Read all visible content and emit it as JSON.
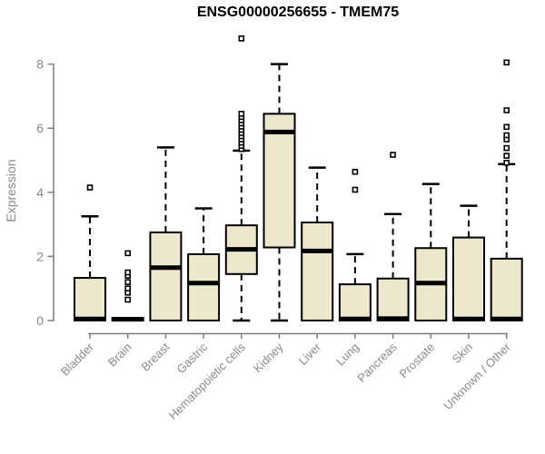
{
  "header": {
    "title": "ENSG00000256655 - TMEM75"
  },
  "colors": {
    "box_fill": "#ece7cd",
    "box_stroke": "#000000",
    "median": "#000000",
    "whisker": "#000000",
    "outlier_fill": "#ffffff",
    "outlier_stroke": "#000000",
    "axis_line": "#7d7d7d",
    "tick_text": "#8a8a8a",
    "title_text": "#000000",
    "background": "#ffffff"
  },
  "chart_data": {
    "type": "boxplot",
    "title": "ENSG00000256655 - TMEM75",
    "xlabel": "",
    "ylabel": "Expression",
    "ylim": [
      0,
      8.9
    ],
    "yticks": [
      0,
      2,
      4,
      6,
      8
    ],
    "grid": false,
    "legend": "none",
    "categories": [
      "Bladder",
      "Brain",
      "Breast",
      "Gastric",
      "Hematopoietic cells",
      "Kidney",
      "Liver",
      "Lung",
      "Pancreas",
      "Prostate",
      "Skin",
      "Unknown / Other"
    ],
    "series": [
      {
        "name": "Bladder",
        "low": 0,
        "q1": 0,
        "median": 0.05,
        "q3": 1.33,
        "high": 3.25,
        "outliers": [
          4.15
        ]
      },
      {
        "name": "Brain",
        "low": 0,
        "q1": 0,
        "median": 0.04,
        "q3": 0.08,
        "high": 0.08,
        "outliers": [
          0.65,
          0.87,
          1.0,
          1.2,
          1.4,
          1.5,
          2.1
        ]
      },
      {
        "name": "Breast",
        "low": 0,
        "q1": 0,
        "median": 1.65,
        "q3": 2.75,
        "high": 5.4,
        "outliers": []
      },
      {
        "name": "Gastric",
        "low": 0,
        "q1": 0,
        "median": 1.17,
        "q3": 2.07,
        "high": 3.5,
        "outliers": []
      },
      {
        "name": "Hematopoietic cells",
        "low": 0,
        "q1": 1.45,
        "median": 2.22,
        "q3": 2.97,
        "high": 5.3,
        "outliers": [
          5.35,
          5.45,
          5.55,
          5.65,
          5.75,
          5.85,
          5.95,
          6.05,
          6.15,
          6.25,
          6.35,
          6.45,
          8.8
        ]
      },
      {
        "name": "Kidney",
        "low": 0,
        "q1": 2.28,
        "median": 5.88,
        "q3": 6.45,
        "high": 8.0,
        "outliers": []
      },
      {
        "name": "Liver",
        "low": 0,
        "q1": 0,
        "median": 2.17,
        "q3": 3.06,
        "high": 4.77,
        "outliers": []
      },
      {
        "name": "Lung",
        "low": 0,
        "q1": 0,
        "median": 0.05,
        "q3": 1.13,
        "high": 2.07,
        "outliers": [
          4.08,
          4.64
        ]
      },
      {
        "name": "Pancreas",
        "low": 0,
        "q1": 0,
        "median": 0.06,
        "q3": 1.31,
        "high": 3.32,
        "outliers": [
          5.17
        ]
      },
      {
        "name": "Prostate",
        "low": 0,
        "q1": 0,
        "median": 1.17,
        "q3": 2.26,
        "high": 4.26,
        "outliers": []
      },
      {
        "name": "Skin",
        "low": 0,
        "q1": 0,
        "median": 0.05,
        "q3": 2.59,
        "high": 3.58,
        "outliers": []
      },
      {
        "name": "Unknown / Other",
        "low": 0,
        "q1": 0,
        "median": 0.05,
        "q3": 1.93,
        "high": 4.88,
        "outliers": [
          4.92,
          5.14,
          5.38,
          5.65,
          5.78,
          6.04,
          6.56,
          8.05
        ]
      }
    ]
  }
}
